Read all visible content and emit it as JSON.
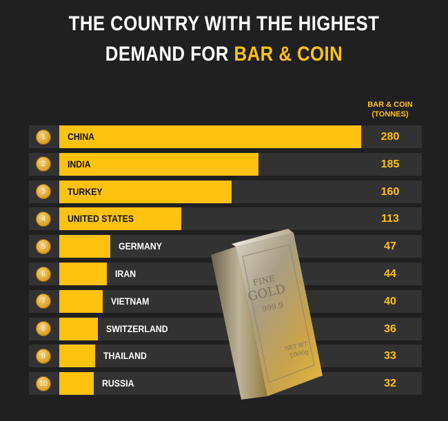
{
  "title": {
    "line1": "THE COUNTRY WITH THE HIGHEST",
    "line2_prefix": "DEMAND FOR ",
    "line2_highlight": "BAR & COIN"
  },
  "unit_label": {
    "line1": "BAR & COIN",
    "line2": "(TONNES)"
  },
  "gold_bar": {
    "line1": "FINE",
    "line2": "GOLD",
    "purity": "999.9",
    "weight_label": "NET WT",
    "weight": "1000g"
  },
  "colors": {
    "accent": "#ffc20e",
    "background": "#202020",
    "row": "#323232"
  },
  "chart_data": {
    "type": "bar",
    "orientation": "horizontal",
    "title": "THE COUNTRY WITH THE HIGHEST DEMAND FOR BAR & COIN",
    "value_label": "BAR & COIN (TONNES)",
    "ranks": [
      "1",
      "2",
      "3",
      "4",
      "5",
      "6",
      "7",
      "8",
      "9",
      "10"
    ],
    "categories": [
      "CHINA",
      "INDIA",
      "TURKEY",
      "UNITED STATES",
      "GERMANY",
      "IRAN",
      "VIETNAM",
      "SWITZERLAND",
      "THAILAND",
      "RUSSIA"
    ],
    "values": [
      280,
      185,
      160,
      113,
      47,
      44,
      40,
      36,
      33,
      32
    ],
    "xlim": [
      0,
      280
    ]
  }
}
